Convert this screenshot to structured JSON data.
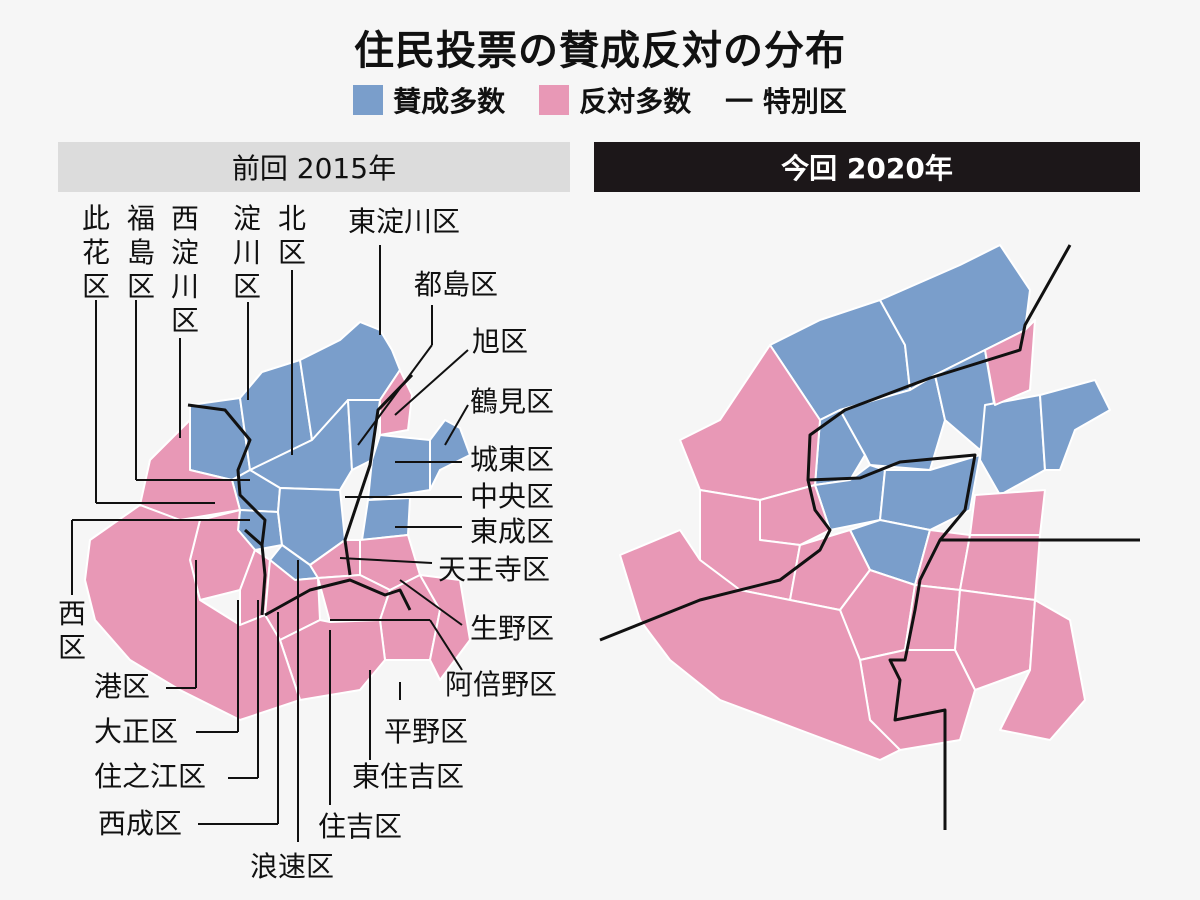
{
  "title": "住民投票の賛成反対の分布",
  "legend": {
    "approve": "賛成多数",
    "oppose": "反対多数",
    "boundary": "一 特別区"
  },
  "colors": {
    "approve": "#7a9ecb",
    "oppose": "#e898b6",
    "boundary": "#111111",
    "ward_line": "#ffffff"
  },
  "panels": {
    "previous": "前回 2015年",
    "current": "今回 2020年"
  },
  "wards": {
    "konohana": "此花区",
    "fukushima": "福島区",
    "nishiyodogawa": "西淀川区",
    "yodogawa": "淀川区",
    "kita": "北区",
    "higashiyodogawa": "東淀川区",
    "miyakojima": "都島区",
    "asahi": "旭区",
    "tsurumi": "鶴見区",
    "joto": "城東区",
    "chuo": "中央区",
    "higashinari": "東成区",
    "tennoji": "天王寺区",
    "ikuno": "生野区",
    "abeno": "阿倍野区",
    "hirano": "平野区",
    "higashisumiyoshi": "東住吉区",
    "sumiyoshi": "住吉区",
    "naniwa": "浪速区",
    "nishinari": "西成区",
    "suminoe": "住之江区",
    "taisho": "大正区",
    "minato": "港区",
    "nishi": "西区"
  }
}
